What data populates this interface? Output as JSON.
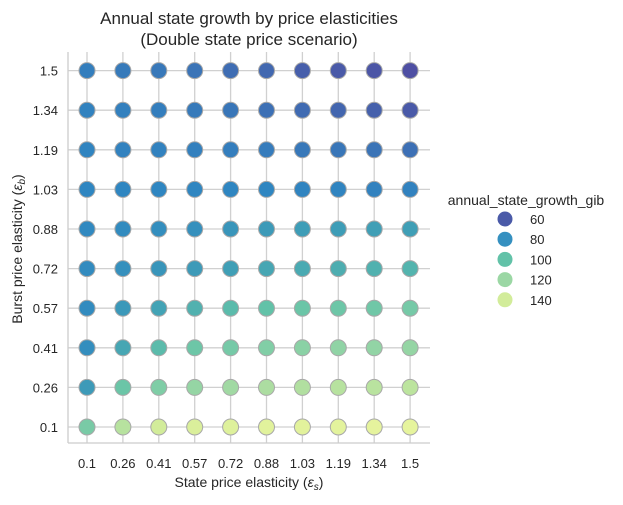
{
  "chart_data": {
    "type": "scatter",
    "title_line1": "Annual state growth by price elasticities",
    "title_line2": "(Double state price scenario)",
    "xlabel": "State price elasticity (",
    "xlabel_symbol": "ε",
    "xlabel_sub": "s",
    "ylabel": "Burst price elasticity (",
    "ylabel_symbol": "ε",
    "ylabel_sub": "b",
    "x_categories": [
      "0.1",
      "0.26",
      "0.41",
      "0.57",
      "0.72",
      "0.88",
      "1.03",
      "1.19",
      "1.34",
      "1.5"
    ],
    "y_categories": [
      "0.1",
      "0.26",
      "0.41",
      "0.57",
      "0.72",
      "0.88",
      "1.03",
      "1.19",
      "1.34",
      "1.5"
    ],
    "grid": true,
    "legend": {
      "title": "annual_state_growth_gib",
      "placement": "right",
      "entries": [
        {
          "label": "60",
          "value": 60,
          "color": "#4a5aa8"
        },
        {
          "label": "80",
          "value": 80,
          "color": "#3590c0"
        },
        {
          "label": "100",
          "value": 100,
          "color": "#62c2a8"
        },
        {
          "label": "120",
          "value": 120,
          "color": "#9bd7a4"
        },
        {
          "label": "140",
          "value": 140,
          "color": "#d2ec9a"
        }
      ]
    },
    "color_scale": [
      {
        "value": 55,
        "color": "#4e4fa3"
      },
      {
        "value": 60,
        "color": "#4a5aa8"
      },
      {
        "value": 70,
        "color": "#3c72b6"
      },
      {
        "value": 80,
        "color": "#2f86c1"
      },
      {
        "value": 90,
        "color": "#409fb6"
      },
      {
        "value": 100,
        "color": "#62c2a8"
      },
      {
        "value": 120,
        "color": "#9bd7a4"
      },
      {
        "value": 140,
        "color": "#d2ec9a"
      },
      {
        "value": 155,
        "color": "#e6f49d"
      }
    ],
    "values_by_y_desc": {
      "1.5": [
        76,
        74,
        73,
        71,
        68,
        66,
        62,
        60,
        58,
        55
      ],
      "1.34": [
        78,
        77,
        76,
        74,
        72,
        69,
        67,
        65,
        63,
        60
      ],
      "1.19": [
        79,
        78,
        78,
        77,
        76,
        75,
        73,
        72,
        71,
        69
      ],
      "1.03": [
        80,
        80,
        80,
        80,
        80,
        80,
        79,
        79,
        78,
        78
      ],
      "0.88": [
        81,
        82,
        83,
        84,
        86,
        88,
        89,
        89,
        90,
        90
      ],
      "0.72": [
        82,
        84,
        86,
        88,
        90,
        92,
        93,
        94,
        95,
        96
      ],
      "0.57": [
        82,
        87,
        91,
        95,
        98,
        100,
        103,
        104,
        105,
        107
      ],
      "0.41": [
        83,
        92,
        98,
        104,
        107,
        111,
        114,
        116,
        117,
        118
      ],
      "0.26": [
        88,
        103,
        110,
        118,
        122,
        126,
        128,
        130,
        131,
        132
      ],
      "0.1": [
        108,
        130,
        140,
        146,
        149,
        151,
        152,
        153,
        154,
        155
      ]
    }
  }
}
